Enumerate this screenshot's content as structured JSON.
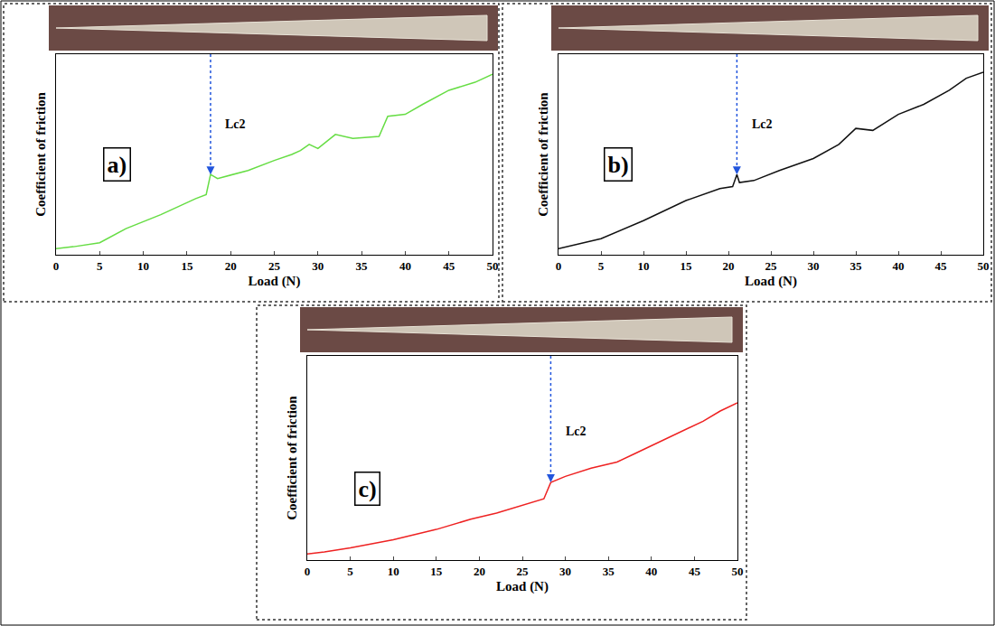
{
  "chart_data": [
    {
      "type": "line",
      "label": "a)",
      "x_label": "Load (N)",
      "y_label": "Coefficient of friction",
      "xlim": [
        0,
        50
      ],
      "xticks": [
        0,
        5,
        10,
        15,
        20,
        25,
        30,
        35,
        40,
        45,
        50
      ],
      "ylim": [
        0,
        1
      ],
      "tick_labels": "x",
      "series": [
        {
          "color": "#66dd44",
          "x": [
            0,
            2,
            5,
            8,
            12,
            16,
            17.2,
            17.7,
            18.5,
            22,
            25,
            27,
            28,
            29,
            30,
            32,
            34,
            37,
            38,
            40,
            42,
            45,
            48,
            50
          ],
          "values": [
            0.03,
            0.04,
            0.06,
            0.13,
            0.2,
            0.28,
            0.3,
            0.4,
            0.38,
            0.42,
            0.47,
            0.5,
            0.52,
            0.55,
            0.53,
            0.6,
            0.58,
            0.59,
            0.69,
            0.7,
            0.75,
            0.82,
            0.86,
            0.9
          ]
        }
      ],
      "annotations": [
        {
          "text": "Lc2",
          "x": 17.7,
          "y": 0.4
        }
      ]
    },
    {
      "type": "line",
      "label": "b)",
      "x_label": "Load (N)",
      "y_label": "Coefficient of friction",
      "xlim": [
        0,
        50
      ],
      "xticks": [
        0,
        5,
        10,
        15,
        20,
        25,
        30,
        35,
        40,
        45,
        50
      ],
      "ylim": [
        0,
        1
      ],
      "tick_labels": "x",
      "series": [
        {
          "color": "#111111",
          "x": [
            0,
            2,
            5,
            10,
            15,
            19,
            20.5,
            21,
            21.3,
            23,
            26,
            30,
            33,
            35,
            37,
            40,
            43,
            46,
            48,
            50
          ],
          "values": [
            0.03,
            0.05,
            0.08,
            0.17,
            0.27,
            0.33,
            0.34,
            0.4,
            0.36,
            0.37,
            0.42,
            0.48,
            0.55,
            0.63,
            0.62,
            0.7,
            0.75,
            0.82,
            0.88,
            0.91
          ]
        }
      ],
      "annotations": [
        {
          "text": "Lc2",
          "x": 21,
          "y": 0.4
        }
      ]
    },
    {
      "type": "line",
      "label": "c)",
      "x_label": "Load (N)",
      "y_label": "Coefficient of friction",
      "xlim": [
        0,
        50
      ],
      "xticks": [
        0,
        5,
        10,
        15,
        20,
        25,
        30,
        35,
        40,
        45,
        50
      ],
      "ylim": [
        0,
        1
      ],
      "tick_labels": "x",
      "series": [
        {
          "color": "#ee2222",
          "x": [
            0,
            2,
            5,
            10,
            15,
            19,
            22,
            25,
            27.5,
            28.3,
            30,
            33,
            36,
            38,
            40,
            43,
            46,
            48,
            50
          ],
          "values": [
            0.03,
            0.04,
            0.06,
            0.1,
            0.15,
            0.2,
            0.23,
            0.27,
            0.3,
            0.38,
            0.41,
            0.45,
            0.48,
            0.52,
            0.56,
            0.62,
            0.68,
            0.73,
            0.77
          ]
        }
      ],
      "annotations": [
        {
          "text": "Lc2",
          "x": 28.3,
          "y": 0.38
        }
      ]
    }
  ]
}
